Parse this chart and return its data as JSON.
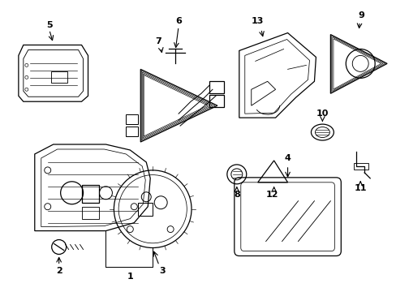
{
  "background": "#ffffff",
  "line_color": "#000000",
  "figsize": [
    4.89,
    3.6
  ],
  "dpi": 100,
  "xlim": [
    0,
    489
  ],
  "ylim": [
    0,
    360
  ]
}
